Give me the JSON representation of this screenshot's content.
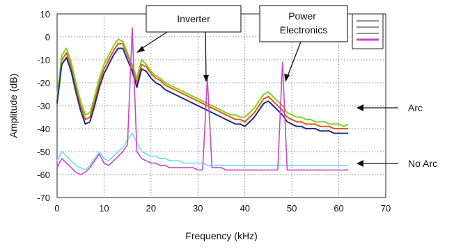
{
  "chart_data": {
    "type": "line",
    "title": "",
    "xlabel": "Frequency (kHz)",
    "ylabel": "Amplitude (dB)",
    "xlim": [
      0,
      70
    ],
    "ylim": [
      -70,
      10
    ],
    "xticks": [
      0,
      10,
      20,
      30,
      40,
      50,
      60,
      70
    ],
    "yticks": [
      10,
      0,
      -10,
      -20,
      -30,
      -40,
      -50,
      -60,
      -70
    ],
    "grid": true,
    "legend": "top-right (illegible)",
    "series": [
      {
        "color": "#e05a10",
        "group": "arc",
        "x": [
          0,
          1,
          2,
          3,
          4,
          5,
          6,
          7,
          8,
          9,
          10,
          11,
          12,
          13,
          14,
          15,
          16,
          17,
          18,
          19,
          20,
          21,
          22,
          23,
          24,
          25,
          26,
          27,
          28,
          29,
          30,
          31,
          32,
          33,
          34,
          35,
          36,
          37,
          38,
          39,
          40,
          41,
          42,
          43,
          44,
          45,
          46,
          47,
          48,
          49,
          50,
          51,
          52,
          53,
          54,
          55,
          56,
          57,
          58,
          59,
          60,
          61,
          62
        ],
        "y": [
          -28,
          -10,
          -7,
          -13,
          -22,
          -30,
          -36,
          -35,
          -28,
          -20,
          -14,
          -10,
          -6,
          -3,
          -3,
          -8,
          -13,
          -20,
          -12,
          -13,
          -16,
          -18,
          -19,
          -21,
          -22,
          -23,
          -24,
          -25,
          -26,
          -27,
          -28,
          -29,
          -30,
          -31,
          -32,
          -33,
          -34,
          -35,
          -36,
          -36,
          -37,
          -35,
          -33,
          -30,
          -27,
          -26,
          -28,
          -30,
          -32,
          -35,
          -36,
          -37,
          -37,
          -38,
          -38,
          -38,
          -39,
          -39,
          -39,
          -40,
          -40,
          -40,
          -40
        ]
      },
      {
        "color": "#7ed321",
        "group": "arc",
        "x": [
          0,
          1,
          2,
          3,
          4,
          5,
          6,
          7,
          8,
          9,
          10,
          11,
          12,
          13,
          14,
          15,
          16,
          17,
          18,
          19,
          20,
          21,
          22,
          23,
          24,
          25,
          26,
          27,
          28,
          29,
          30,
          31,
          32,
          33,
          34,
          35,
          36,
          37,
          38,
          39,
          40,
          41,
          42,
          43,
          44,
          45,
          46,
          47,
          48,
          49,
          50,
          51,
          52,
          53,
          54,
          55,
          56,
          57,
          58,
          59,
          60,
          61,
          62
        ],
        "y": [
          -26,
          -8,
          -5,
          -11,
          -20,
          -28,
          -34,
          -33,
          -26,
          -18,
          -12,
          -8,
          -4,
          -1,
          -2,
          -7,
          -12,
          -18,
          -10,
          -12,
          -15,
          -17,
          -18,
          -20,
          -21,
          -22,
          -23,
          -24,
          -25,
          -26,
          -27,
          -28,
          -29,
          -30,
          -31,
          -32,
          -33,
          -34,
          -34,
          -35,
          -35,
          -33,
          -31,
          -28,
          -25,
          -24,
          -26,
          -28,
          -30,
          -33,
          -34,
          -35,
          -35,
          -36,
          -36,
          -37,
          -37,
          -37,
          -38,
          -38,
          -38,
          -39,
          -38
        ]
      },
      {
        "color": "#1f2a8a",
        "group": "arc",
        "x": [
          0,
          1,
          2,
          3,
          4,
          5,
          6,
          7,
          8,
          9,
          10,
          11,
          12,
          13,
          14,
          15,
          16,
          17,
          18,
          19,
          20,
          21,
          22,
          23,
          24,
          25,
          26,
          27,
          28,
          29,
          30,
          31,
          32,
          33,
          34,
          35,
          36,
          37,
          38,
          39,
          40,
          41,
          42,
          43,
          44,
          45,
          46,
          47,
          48,
          49,
          50,
          51,
          52,
          53,
          54,
          55,
          56,
          57,
          58,
          59,
          60,
          61,
          62
        ],
        "y": [
          -29,
          -12,
          -9,
          -15,
          -24,
          -32,
          -38,
          -37,
          -30,
          -22,
          -16,
          -12,
          -8,
          -5,
          -5,
          -10,
          -15,
          -22,
          -14,
          -15,
          -18,
          -20,
          -21,
          -23,
          -24,
          -25,
          -26,
          -27,
          -28,
          -29,
          -30,
          -31,
          -32,
          -33,
          -34,
          -35,
          -36,
          -37,
          -38,
          -38,
          -39,
          -37,
          -35,
          -32,
          -29,
          -28,
          -30,
          -32,
          -34,
          -37,
          -38,
          -39,
          -39,
          -40,
          -40,
          -40,
          -41,
          -41,
          -41,
          -42,
          -42,
          -42,
          -42
        ]
      },
      {
        "color": "#6fdcf0",
        "group": "noarc",
        "x": [
          0,
          1,
          2,
          3,
          4,
          5,
          6,
          7,
          8,
          9,
          10,
          11,
          12,
          13,
          14,
          15,
          16,
          17,
          18,
          19,
          20,
          21,
          22,
          23,
          24,
          25,
          26,
          27,
          28,
          29,
          30,
          31,
          32,
          33,
          34,
          35,
          36,
          37,
          38,
          39,
          40,
          41,
          42,
          43,
          44,
          45,
          46,
          47,
          48,
          49,
          50,
          51,
          52,
          53,
          54,
          55,
          56,
          57,
          58,
          59,
          60,
          61,
          62
        ],
        "y": [
          -54,
          -50,
          -52,
          -54,
          -56,
          -57,
          -58,
          -56,
          -53,
          -50,
          -53,
          -54,
          -52,
          -50,
          -48,
          -45,
          -42,
          -46,
          -50,
          -51,
          -52,
          -52,
          -53,
          -53,
          -54,
          -54,
          -54,
          -55,
          -55,
          -55,
          -55,
          -55,
          -56,
          -56,
          -56,
          -56,
          -56,
          -56,
          -56,
          -56,
          -56,
          -56,
          -56,
          -56,
          -56,
          -56,
          -56,
          -56,
          -56,
          -56,
          -56,
          -56,
          -56,
          -56,
          -56,
          -56,
          -56,
          -56,
          -56,
          -56,
          -56,
          -56,
          -56
        ]
      },
      {
        "color": "#cc44cc",
        "group": "noarc",
        "x": [
          0,
          1,
          2,
          3,
          4,
          5,
          6,
          7,
          8,
          9,
          10,
          11,
          12,
          13,
          14,
          15,
          16,
          17,
          18,
          19,
          20,
          21,
          22,
          23,
          24,
          25,
          26,
          27,
          28,
          29,
          30,
          31,
          32,
          33,
          34,
          35,
          36,
          37,
          38,
          39,
          40,
          41,
          42,
          43,
          44,
          45,
          46,
          47,
          48,
          49,
          50,
          51,
          52,
          53,
          54,
          55,
          56,
          57,
          58,
          59,
          60,
          61,
          62
        ],
        "y": [
          -57,
          -53,
          -55,
          -57,
          -59,
          -60,
          -59,
          -57,
          -54,
          -51,
          -55,
          -56,
          -54,
          -52,
          -50,
          -47,
          4,
          -50,
          -53,
          -54,
          -55,
          -55,
          -56,
          -56,
          -57,
          -57,
          -57,
          -57,
          -57,
          -57,
          -58,
          -58,
          -18,
          -57,
          -57,
          -57,
          -58,
          -58,
          -58,
          -58,
          -58,
          -58,
          -58,
          -58,
          -58,
          -58,
          -58,
          -58,
          -11,
          -58,
          -58,
          -58,
          -58,
          -58,
          -58,
          -58,
          -58,
          -58,
          -58,
          -58,
          -58,
          -58,
          -58
        ]
      }
    ],
    "annotations": [
      {
        "text": "Inverter"
      },
      {
        "text": "Power\nElectronics"
      },
      {
        "text": "Arc"
      },
      {
        "text": "No Arc"
      }
    ]
  }
}
